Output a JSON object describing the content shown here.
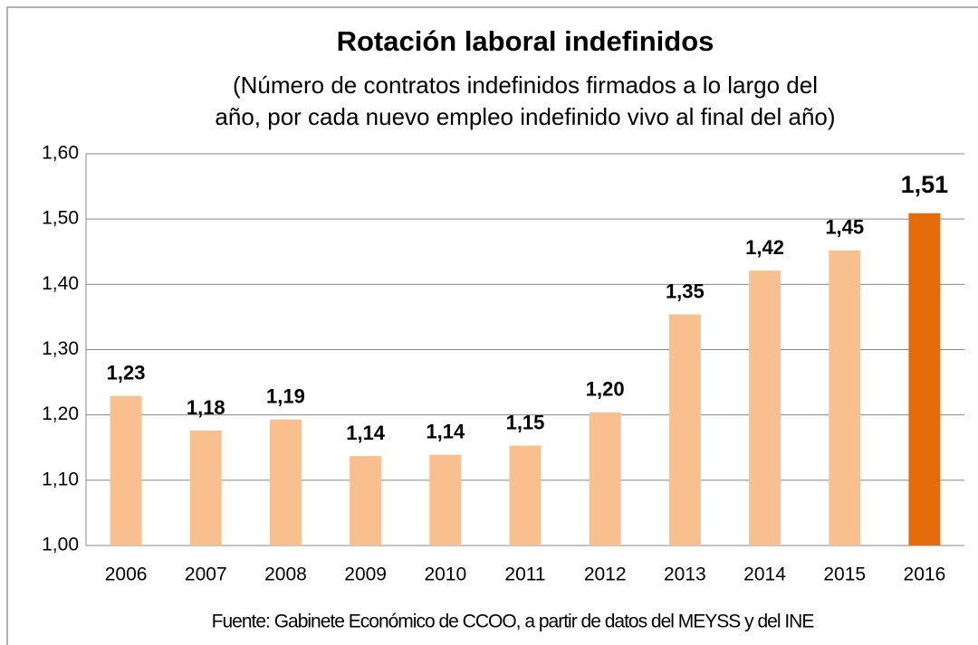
{
  "chart_data": {
    "type": "bar",
    "title": "Rotación laboral indefinidos",
    "subtitle": [
      "(Número de contratos  indefinidos firmados a lo largo del",
      "año, por cada nuevo empleo indefinido vivo al final del año)"
    ],
    "source": "Fuente: Gabinete Económico de CCOO, a partir de datos del MEYSS y del INE",
    "categories": [
      "2006",
      "2007",
      "2008",
      "2009",
      "2010",
      "2011",
      "2012",
      "2013",
      "2014",
      "2015",
      "2016"
    ],
    "values": [
      1.229,
      1.176,
      1.193,
      1.137,
      1.139,
      1.153,
      1.204,
      1.354,
      1.421,
      1.452,
      1.509
    ],
    "value_labels": [
      "1,23",
      "1,18",
      "1,19",
      "1,14",
      "1,14",
      "1,15",
      "1,20",
      "1,35",
      "1,42",
      "1,45",
      "1,51"
    ],
    "colors": [
      "#f9c08f",
      "#f9c08f",
      "#f9c08f",
      "#f9c08f",
      "#f9c08f",
      "#f9c08f",
      "#f9c08f",
      "#f9c08f",
      "#f9c08f",
      "#f9c08f",
      "#e46c0a"
    ],
    "ylim": [
      1.0,
      1.6
    ],
    "yticks": [
      {
        "value": 1.0,
        "label": "1,00"
      },
      {
        "value": 1.1,
        "label": "1,10"
      },
      {
        "value": 1.2,
        "label": "1,20"
      },
      {
        "value": 1.3,
        "label": "1,30"
      },
      {
        "value": 1.4,
        "label": "1,40"
      },
      {
        "value": 1.5,
        "label": "1,50"
      },
      {
        "value": 1.6,
        "label": "1,60"
      }
    ],
    "grid": true
  }
}
